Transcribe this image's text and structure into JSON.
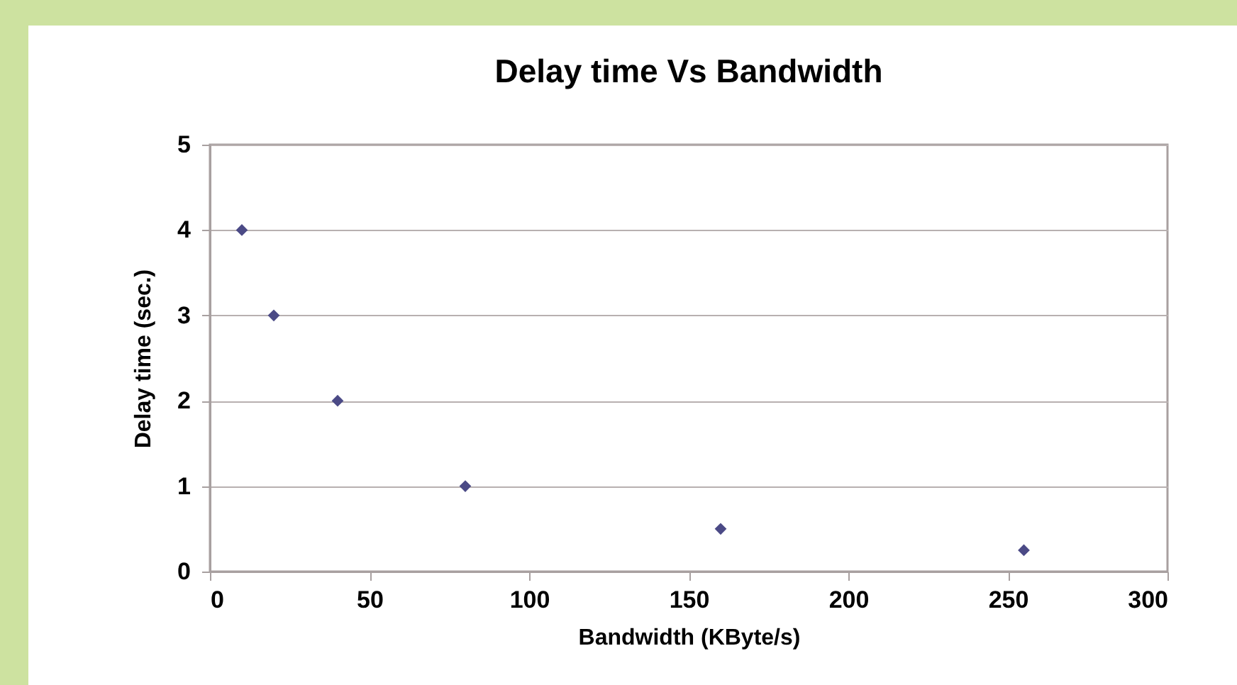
{
  "chart_data": {
    "type": "scatter",
    "title": "Delay time Vs Bandwidth",
    "xlabel": "Bandwidth (KByte/s)",
    "ylabel": "Delay time (sec.)",
    "x": [
      10,
      20,
      40,
      80,
      160,
      255
    ],
    "series": [
      {
        "color": "#4b4a86",
        "values": [
          4,
          3,
          2,
          1,
          0.5,
          0.25
        ]
      }
    ],
    "xlim": [
      0,
      300
    ],
    "xticks": [
      0,
      50,
      100,
      150,
      200,
      250,
      300
    ],
    "ylim": [
      0,
      5
    ],
    "yticks": [
      0,
      1,
      2,
      3,
      4,
      5
    ],
    "grid": "y",
    "legend": false,
    "marker": "diamond"
  }
}
